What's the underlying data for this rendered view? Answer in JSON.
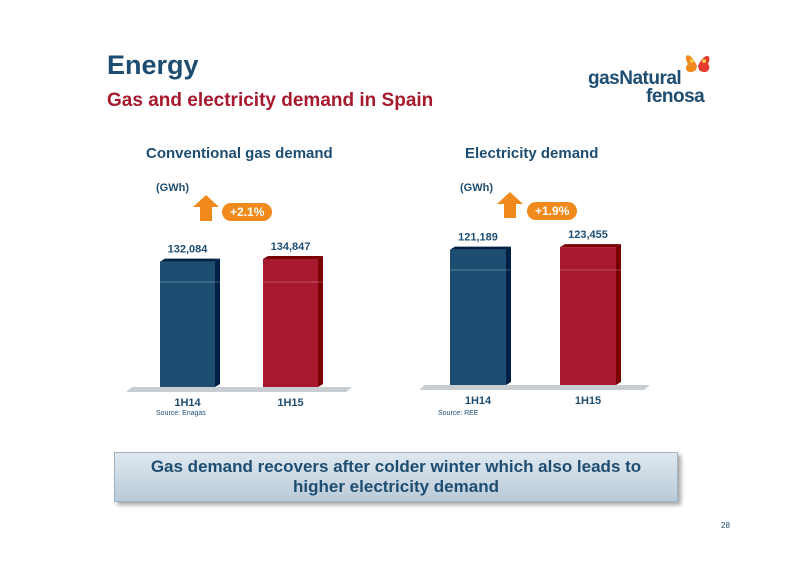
{
  "header": {
    "title": "Energy",
    "subtitle": "Gas and electricity demand in Spain"
  },
  "logo": {
    "line1": "gasNatural",
    "line2": "fenosa"
  },
  "colors": {
    "navy": "#1e4d72",
    "crimson": "#a6192e",
    "orange": "#f08a1c"
  },
  "chart_data": [
    {
      "type": "bar",
      "title": "Conventional gas demand",
      "unit": "(GWh)",
      "growth": "+2.1%",
      "categories": [
        "1H14",
        "1H15"
      ],
      "values": [
        132084,
        134847
      ],
      "value_labels": [
        "132,084",
        "134,847"
      ],
      "bar_colors": [
        "#1e4d72",
        "#a6192e"
      ],
      "source": "Source: Enagas"
    },
    {
      "type": "bar",
      "title": "Electricity demand",
      "unit": "(GWh)",
      "growth": "+1.9%",
      "categories": [
        "1H14",
        "1H15"
      ],
      "values": [
        121189,
        123455
      ],
      "value_labels": [
        "121,189",
        "123,455"
      ],
      "bar_colors": [
        "#1e4d72",
        "#a6192e"
      ],
      "source": "Source: REE"
    }
  ],
  "callout": {
    "line1": "Gas demand recovers after colder winter which also leads to",
    "line2": "higher electricity demand"
  },
  "page_number": "28"
}
